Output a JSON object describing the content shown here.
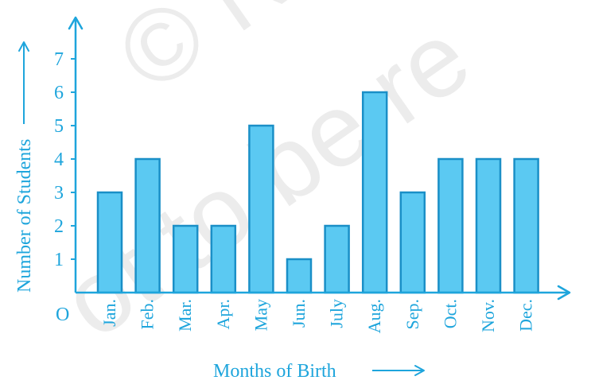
{
  "chart_data": {
    "type": "bar",
    "categories": [
      "Jan.",
      "Feb.",
      "Mar.",
      "Apr.",
      "May",
      "Jun.",
      "July",
      "Aug.",
      "Sep.",
      "Oct.",
      "Nov.",
      "Dec."
    ],
    "values": [
      3,
      4,
      2,
      2,
      5,
      1,
      2,
      6,
      3,
      4,
      4,
      4
    ],
    "xlabel": "Months of Birth",
    "ylabel": "Number of Students",
    "yticks": [
      "1",
      "2",
      "3",
      "4",
      "5",
      "6",
      "7"
    ],
    "ylim": [
      0,
      7
    ],
    "origin_label": "O",
    "grid": false,
    "colors": {
      "bar_fill": "#5bc9f2",
      "bar_stroke": "#1a8fc7",
      "axis": "#1ea5dc"
    }
  }
}
